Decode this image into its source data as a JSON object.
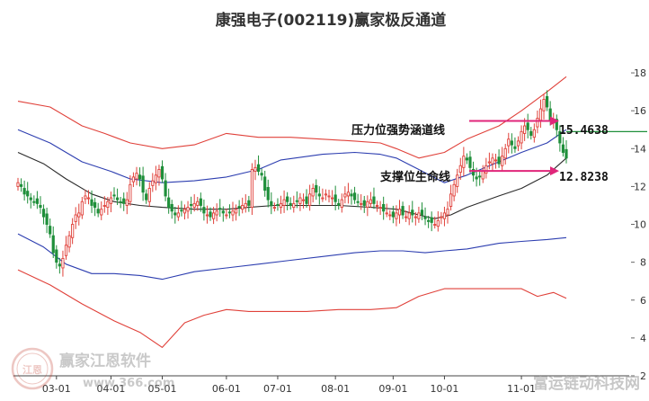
{
  "chart_data": {
    "type": "line",
    "title": "康强电子(002119)赢家极反通道",
    "x_labels": [
      "03-01",
      "04-01",
      "05-01",
      "06-01",
      "07-01",
      "08-01",
      "09-01",
      "10-01",
      "11-01"
    ],
    "y_ticks": [
      2,
      4,
      6,
      8,
      10,
      12,
      14,
      16,
      18
    ],
    "ylim": [
      2,
      19
    ],
    "n_days": 172,
    "tick_days": [
      12,
      29,
      45,
      65,
      81,
      99,
      117,
      133,
      157
    ],
    "series": [
      {
        "role": "outer_upper",
        "color": "#e0413a",
        "x": [
          0,
          10,
          20,
          27,
          35,
          45,
          55,
          65,
          75,
          85,
          95,
          105,
          113,
          118,
          125,
          133,
          140,
          150,
          157,
          165,
          171
        ],
        "y": [
          16.5,
          16.2,
          15.2,
          14.8,
          14.3,
          14.0,
          14.2,
          14.8,
          14.6,
          14.6,
          14.5,
          14.4,
          14.3,
          14.0,
          13.5,
          13.8,
          14.5,
          15.2,
          16.0,
          17.0,
          17.8
        ]
      },
      {
        "role": "inner_upper",
        "color": "#2d3eb0",
        "x": [
          0,
          10,
          20,
          29,
          35,
          45,
          55,
          65,
          75,
          82,
          95,
          105,
          113,
          118,
          125,
          133,
          140,
          150,
          157,
          165,
          171
        ],
        "y": [
          15.0,
          14.3,
          13.3,
          12.8,
          12.4,
          12.2,
          12.3,
          12.5,
          12.9,
          13.4,
          13.7,
          13.8,
          13.7,
          13.5,
          12.9,
          12.2,
          12.6,
          13.3,
          13.8,
          14.3,
          15.0
        ]
      },
      {
        "role": "middle",
        "color": "#2b2b2b",
        "x": [
          0,
          8,
          15,
          23,
          30,
          38,
          45,
          55,
          65,
          72,
          80,
          90,
          100,
          110,
          118,
          125,
          130,
          135,
          140,
          150,
          157,
          165,
          171
        ],
        "y": [
          13.8,
          13.2,
          12.4,
          11.6,
          11.2,
          11.0,
          10.9,
          10.8,
          10.8,
          10.9,
          11.0,
          11.0,
          11.0,
          10.9,
          10.8,
          10.5,
          10.3,
          10.5,
          10.9,
          11.5,
          11.9,
          12.6,
          13.5
        ]
      },
      {
        "role": "inner_lower",
        "color": "#2d3eb0",
        "x": [
          0,
          8,
          15,
          23,
          30,
          38,
          45,
          55,
          65,
          75,
          85,
          95,
          105,
          113,
          120,
          127,
          133,
          140,
          150,
          157,
          165,
          171
        ],
        "y": [
          9.5,
          8.8,
          7.9,
          7.4,
          7.4,
          7.3,
          7.1,
          7.5,
          7.7,
          7.9,
          8.1,
          8.3,
          8.5,
          8.6,
          8.6,
          8.5,
          8.6,
          8.7,
          9.0,
          9.1,
          9.2,
          9.3
        ]
      },
      {
        "role": "outer_lower",
        "color": "#e0413a",
        "x": [
          0,
          10,
          20,
          30,
          38,
          45,
          52,
          58,
          65,
          72,
          80,
          90,
          100,
          110,
          118,
          125,
          133,
          140,
          150,
          157,
          162,
          167,
          171
        ],
        "y": [
          7.6,
          6.8,
          5.8,
          4.9,
          4.3,
          3.5,
          4.8,
          5.2,
          5.5,
          5.4,
          5.4,
          5.4,
          5.5,
          5.5,
          5.6,
          6.2,
          6.6,
          6.6,
          6.6,
          6.6,
          6.2,
          6.4,
          6.1
        ]
      }
    ],
    "price": {
      "up_color": "#e0413a",
      "down_color": "#1f8f3a",
      "closes": [
        12.2,
        12.0,
        11.6,
        11.5,
        11.3,
        11.2,
        11.1,
        10.9,
        10.4,
        10.0,
        9.5,
        8.5,
        8.0,
        7.8,
        8.2,
        8.9,
        9.4,
        10.0,
        10.5,
        10.6,
        11.2,
        11.5,
        11.4,
        11.0,
        10.9,
        10.6,
        10.8,
        11.0,
        11.2,
        11.4,
        11.5,
        11.3,
        11.2,
        11.1,
        11.3,
        12.1,
        12.5,
        12.7,
        12.4,
        11.7,
        11.3,
        11.9,
        12.3,
        12.6,
        12.9,
        12.4,
        11.5,
        10.9,
        10.7,
        10.5,
        10.6,
        10.7,
        10.8,
        10.9,
        11.0,
        11.1,
        11.2,
        11.0,
        10.6,
        10.5,
        10.4,
        10.6,
        10.7,
        10.8,
        10.6,
        10.5,
        10.6,
        10.7,
        10.8,
        10.9,
        11.0,
        11.1,
        11.0,
        12.9,
        13.0,
        12.8,
        12.6,
        11.8,
        11.3,
        11.0,
        10.9,
        11.0,
        11.1,
        11.3,
        11.2,
        11.0,
        11.1,
        11.2,
        11.4,
        11.3,
        11.1,
        11.6,
        11.9,
        11.7,
        11.5,
        11.4,
        11.6,
        11.5,
        11.4,
        11.2,
        11.0,
        11.3,
        11.6,
        11.7,
        11.5,
        11.3,
        11.2,
        11.1,
        11.0,
        11.2,
        11.3,
        11.1,
        11.0,
        10.9,
        10.7,
        10.6,
        10.5,
        10.4,
        10.6,
        10.8,
        10.5,
        10.4,
        10.6,
        10.5,
        10.4,
        10.6,
        10.5,
        10.3,
        10.2,
        10.1,
        10.0,
        10.2,
        10.4,
        10.6,
        10.8,
        11.6,
        12.1,
        12.6,
        13.1,
        13.6,
        13.4,
        13.0,
        12.6,
        12.4,
        12.5,
        12.8,
        13.1,
        13.3,
        13.5,
        13.4,
        13.2,
        13.6,
        14.0,
        14.5,
        14.2,
        14.0,
        14.4,
        14.9,
        15.2,
        15.0,
        14.7,
        15.0,
        15.6,
        16.1,
        16.6,
        16.2,
        15.5,
        15.4,
        15.0,
        14.3,
        13.8,
        13.5
      ]
    },
    "annotations": [
      {
        "label": "压力位强势涵道线",
        "value_label": "15.4638",
        "value": 15.4638
      },
      {
        "label": "支撑位生命线",
        "value_label": "12.8238",
        "value": 12.8238
      }
    ],
    "watermarks": [
      "赢家江恩软件",
      "www.366.com",
      "富运链动科技网",
      "江恩"
    ]
  }
}
